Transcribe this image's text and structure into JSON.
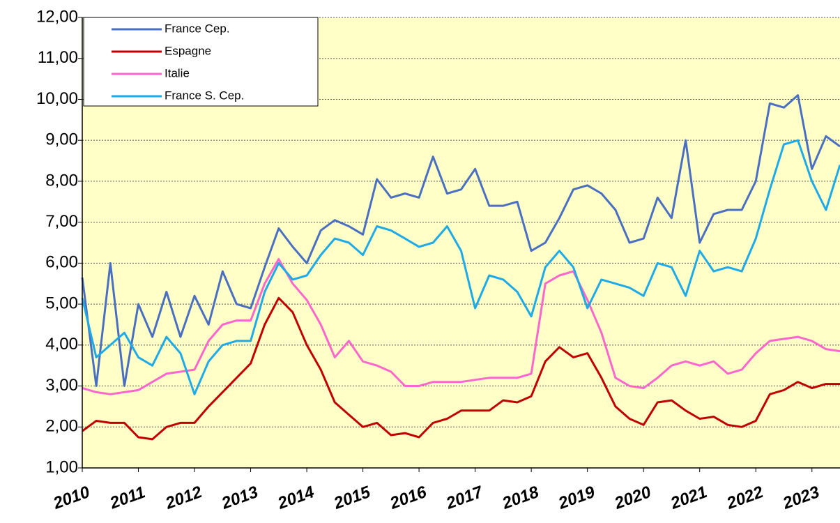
{
  "chart_data": {
    "type": "line",
    "x": [
      2010,
      2010.25,
      2010.5,
      2010.75,
      2011,
      2011.25,
      2011.5,
      2011.75,
      2012,
      2012.25,
      2012.5,
      2012.75,
      2013,
      2013.25,
      2013.5,
      2013.75,
      2014,
      2014.25,
      2014.5,
      2014.75,
      2015,
      2015.25,
      2015.5,
      2015.75,
      2016,
      2016.25,
      2016.5,
      2016.75,
      2017,
      2017.25,
      2017.5,
      2017.75,
      2018,
      2018.25,
      2018.5,
      2018.75,
      2019,
      2019.25,
      2019.5,
      2019.75,
      2020,
      2020.25,
      2020.5,
      2020.75,
      2021,
      2021.25,
      2021.5,
      2021.75,
      2022,
      2022.25,
      2022.5,
      2022.75,
      2023,
      2023.25,
      2023.5
    ],
    "series": [
      {
        "name": "France Cep.",
        "color": "#4a6fc0",
        "values": [
          5.65,
          3.0,
          6.0,
          3.0,
          5.0,
          4.2,
          5.3,
          4.2,
          5.2,
          4.5,
          5.8,
          5.0,
          4.9,
          5.9,
          6.85,
          6.4,
          6.0,
          6.8,
          7.05,
          6.9,
          6.7,
          8.05,
          7.6,
          7.7,
          7.6,
          8.6,
          7.7,
          7.8,
          8.3,
          7.4,
          7.4,
          7.5,
          6.3,
          6.5,
          7.1,
          7.8,
          7.9,
          7.7,
          7.3,
          6.5,
          6.6,
          7.6,
          7.1,
          9.0,
          6.5,
          7.2,
          7.3,
          7.3,
          8.0,
          9.9,
          9.8,
          10.1,
          8.3,
          9.1,
          8.85
        ]
      },
      {
        "name": "Espagne",
        "color": "#c00000",
        "values": [
          1.9,
          2.15,
          2.1,
          2.1,
          1.75,
          1.7,
          2.0,
          2.1,
          2.1,
          2.5,
          2.85,
          3.2,
          3.55,
          4.5,
          5.15,
          4.8,
          4.0,
          3.4,
          2.6,
          2.3,
          2.0,
          2.1,
          1.8,
          1.85,
          1.75,
          2.1,
          2.2,
          2.4,
          2.4,
          2.4,
          2.65,
          2.6,
          2.75,
          3.6,
          3.95,
          3.7,
          3.8,
          3.2,
          2.5,
          2.2,
          2.05,
          2.6,
          2.65,
          2.4,
          2.2,
          2.25,
          2.05,
          2.0,
          2.15,
          2.8,
          2.9,
          3.1,
          2.95,
          3.05,
          3.05
        ]
      },
      {
        "name": "Italie",
        "color": "#ff66cc",
        "values": [
          2.95,
          2.85,
          2.8,
          2.85,
          2.9,
          3.1,
          3.3,
          3.35,
          3.4,
          4.1,
          4.5,
          4.6,
          4.6,
          5.5,
          6.1,
          5.5,
          5.1,
          4.5,
          3.7,
          4.1,
          3.6,
          3.5,
          3.35,
          3.0,
          3.0,
          3.1,
          3.1,
          3.1,
          3.15,
          3.2,
          3.2,
          3.2,
          3.3,
          5.5,
          5.7,
          5.8,
          5.1,
          4.3,
          3.2,
          3.0,
          2.95,
          3.2,
          3.5,
          3.6,
          3.5,
          3.6,
          3.3,
          3.4,
          3.8,
          4.1,
          4.15,
          4.2,
          4.1,
          3.9,
          3.85
        ]
      },
      {
        "name": "France S. Cep.",
        "color": "#1eaae6",
        "values": [
          5.15,
          3.7,
          4.0,
          4.3,
          3.7,
          3.5,
          4.2,
          3.8,
          2.8,
          3.6,
          4.0,
          4.1,
          4.1,
          5.3,
          6.0,
          5.6,
          5.7,
          6.2,
          6.6,
          6.5,
          6.2,
          6.9,
          6.8,
          6.6,
          6.4,
          6.5,
          6.9,
          6.3,
          4.9,
          5.7,
          5.6,
          5.3,
          4.7,
          5.9,
          6.3,
          5.9,
          4.9,
          5.6,
          5.5,
          5.4,
          5.2,
          6.0,
          5.9,
          5.2,
          6.3,
          5.8,
          5.9,
          5.8,
          6.6,
          7.8,
          8.9,
          9.0,
          8.0,
          7.3,
          8.4
        ]
      }
    ],
    "xlim": [
      2010,
      2023.5
    ],
    "xticks": [
      2010,
      2011,
      2012,
      2013,
      2014,
      2015,
      2016,
      2017,
      2018,
      2019,
      2020,
      2021,
      2022,
      2023
    ],
    "ylim": [
      1,
      12
    ],
    "yticks": [
      {
        "value": 1,
        "label": "1,00"
      },
      {
        "value": 2,
        "label": "2,00"
      },
      {
        "value": 3,
        "label": "3,00"
      },
      {
        "value": 4,
        "label": "4,00"
      },
      {
        "value": 5,
        "label": "5,00"
      },
      {
        "value": 6,
        "label": "6,00"
      },
      {
        "value": 7,
        "label": "7,00"
      },
      {
        "value": 8,
        "label": "8,00"
      },
      {
        "value": 9,
        "label": "9,00"
      },
      {
        "value": 10,
        "label": "10,00"
      },
      {
        "value": 11,
        "label": "11,00"
      },
      {
        "value": 12,
        "label": "12,00"
      }
    ],
    "grid": true,
    "legend": "top-left"
  }
}
